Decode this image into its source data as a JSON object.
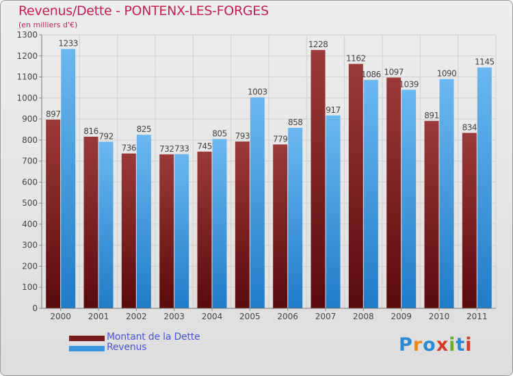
{
  "header": {
    "title": "Revenus/Dette - PONTENX-LES-FORGES",
    "subtitle": "(en milliers d'€)"
  },
  "legend": {
    "items": [
      {
        "label": "Montant de la Dette",
        "color": "#7a1a1a"
      },
      {
        "label": "Revenus",
        "color": "#3a98e0"
      }
    ]
  },
  "logo": {
    "text": "Proxiti"
  },
  "colors": {
    "dette_top": "#9a3a3a",
    "dette_bottom": "#5a0a0a",
    "revenus_top": "#6cb8f0",
    "revenus_bottom": "#1f7cc7",
    "text": "#444444",
    "grid": "#d0d0d0"
  },
  "chart_data": {
    "type": "bar",
    "title": "Revenus/Dette - PONTENX-LES-FORGES",
    "subtitle": "(en milliers d'€)",
    "categories": [
      "2000",
      "2001",
      "2002",
      "2003",
      "2004",
      "2005",
      "2006",
      "2007",
      "2008",
      "2009",
      "2010",
      "2011"
    ],
    "series": [
      {
        "name": "Montant de la Dette",
        "values": [
          897,
          816,
          736,
          732,
          745,
          793,
          779,
          1228,
          1162,
          1097,
          891,
          834
        ]
      },
      {
        "name": "Revenus",
        "values": [
          1233,
          792,
          825,
          733,
          805,
          1003,
          858,
          917,
          1086,
          1039,
          1090,
          1145
        ]
      }
    ],
    "ylim": [
      0,
      1300
    ],
    "yticks": [
      0,
      100,
      200,
      300,
      400,
      500,
      600,
      700,
      800,
      900,
      1000,
      1100,
      1200,
      1300
    ],
    "grid": true,
    "legend_position": "bottom-left"
  }
}
